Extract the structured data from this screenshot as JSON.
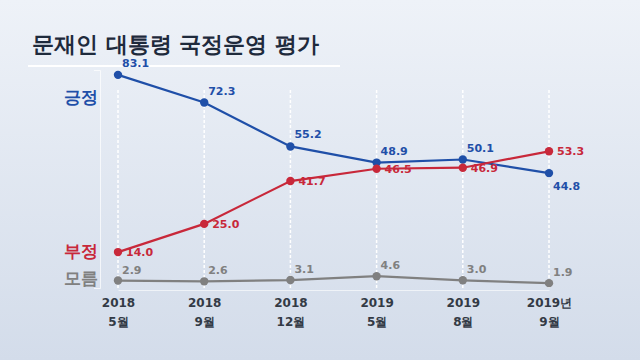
{
  "chart_data": {
    "type": "line",
    "title": "문재인 대통령 국정운영 평가",
    "categories": [
      "2018\n5월",
      "2018\n9월",
      "2018\n12월",
      "2019\n5월",
      "2019\n8월",
      "2019년\n9월"
    ],
    "series": [
      {
        "name": "긍정",
        "color": "#1f4fa8",
        "values": [
          83.1,
          72.3,
          55.2,
          48.9,
          50.1,
          44.8
        ],
        "value_labels": [
          "83.1",
          "72.3",
          "55.2",
          "48.9",
          "50.1",
          "44.8"
        ]
      },
      {
        "name": "부정",
        "color": "#c8283a",
        "values": [
          14.0,
          25.0,
          41.7,
          46.5,
          46.9,
          53.3
        ],
        "value_labels": [
          "14.0",
          "25.0",
          "41.7",
          "46.5",
          "46.9",
          "53.3"
        ]
      },
      {
        "name": "모름",
        "color": "#808080",
        "values": [
          2.9,
          2.6,
          3.1,
          4.6,
          3.0,
          1.9
        ],
        "value_labels": [
          "2.9",
          "2.6",
          "3.1",
          "4.6",
          "3.0",
          "1.9"
        ]
      }
    ],
    "ylim": [
      0,
      85
    ],
    "yticks": [],
    "tick_labels": "x",
    "grid": true,
    "data_labels": true,
    "marker": "circle"
  }
}
